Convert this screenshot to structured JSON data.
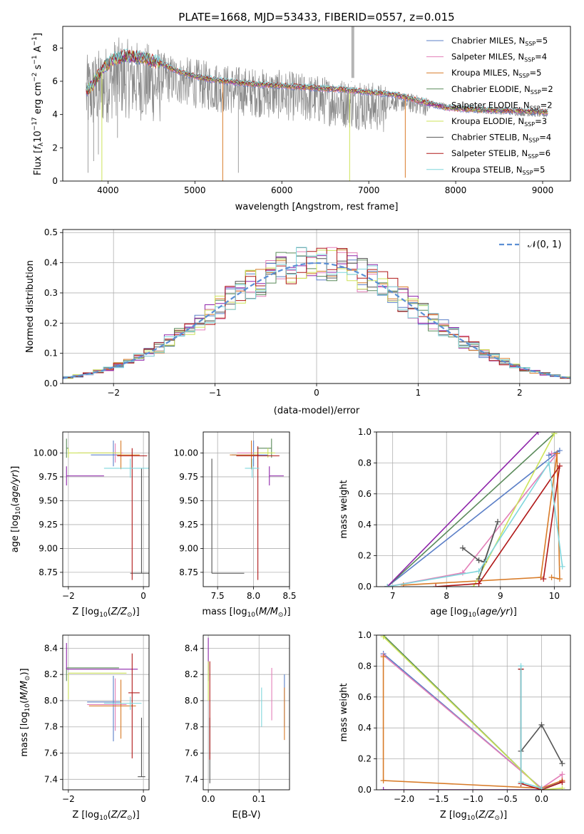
{
  "figure_title": "PLATE=1668, MJD=53433, FIBERID=0557, z=0.015",
  "colors": {
    "Chabrier MILES": "#5b7fc7",
    "Salpeter MILES": "#e37fb8",
    "Kroupa MILES": "#d87b28",
    "Chabrier ELODIE": "#5a8a5a",
    "Salpeter ELODIE": "#8e24aa",
    "Kroupa ELODIE": "#cde35a",
    "Chabrier STELIB": "#555555",
    "Salpeter STELIB": "#b01818",
    "Kroupa STELIB": "#7fd6dc",
    "data": "#888888"
  },
  "chart_data": [
    {
      "id": "spectrum",
      "type": "line",
      "title": "PLATE=1668, MJD=53433, FIBERID=0557, z=0.015",
      "xlabel": "wavelength [Angstrom, rest frame]",
      "ylabel": "Flux [f_λ 10^-17 erg cm^-2 s^-1 A^-1]",
      "xlim": [
        3480,
        9320
      ],
      "ylim": [
        0,
        9.3
      ],
      "xticks": [
        4000,
        5000,
        6000,
        7000,
        8000,
        9000
      ],
      "yticks": [
        0,
        2,
        4,
        6,
        8
      ],
      "grid": false,
      "legend_position": "top-right",
      "legend": [
        {
          "name": "Chabrier MILES",
          "nssp": "5"
        },
        {
          "name": "Salpeter MILES",
          "nssp": "4"
        },
        {
          "name": "Kroupa MILES",
          "nssp": "5"
        },
        {
          "name": "Chabrier ELODIE",
          "nssp": "2"
        },
        {
          "name": "Salpeter ELODIE",
          "nssp": "2"
        },
        {
          "name": "Kroupa ELODIE",
          "nssp": "3"
        },
        {
          "name": "Chabrier STELIB",
          "nssp": "4"
        },
        {
          "name": "Salpeter STELIB",
          "nssp": "6"
        },
        {
          "name": "Kroupa STELIB",
          "nssp": "5"
        }
      ],
      "data_envelope": {
        "x": [
          3750,
          3900,
          4000,
          4100,
          4300,
          4500,
          4700,
          5000,
          5300,
          5600,
          6000,
          6300,
          6600,
          6900,
          7200,
          7500,
          7700,
          7900,
          8200,
          8500,
          8800,
          9060
        ],
        "y": [
          6.5,
          6.9,
          7.2,
          7.6,
          7.4,
          7.2,
          7.0,
          6.7,
          6.4,
          6.2,
          6.0,
          5.8,
          5.6,
          5.4,
          5.2,
          5.0,
          4.8,
          4.6,
          4.4,
          4.3,
          4.2,
          4.1
        ]
      },
      "model_continuum": {
        "x": [
          3750,
          3850,
          3950,
          4050,
          4200,
          4400,
          4600,
          4800,
          5000,
          5200,
          5500,
          5800,
          6100,
          6400,
          6700,
          7000,
          7300,
          7600,
          7900,
          8200,
          8500,
          8800,
          9060
        ],
        "y": [
          5.4,
          6.0,
          6.8,
          7.3,
          7.5,
          7.4,
          7.1,
          6.6,
          6.3,
          6.1,
          5.9,
          5.8,
          5.7,
          5.6,
          5.5,
          5.35,
          5.2,
          4.8,
          4.4,
          4.3,
          4.25,
          4.2,
          4.15
        ]
      },
      "spikes": [
        {
          "x": 3930,
          "y_to": 0.0,
          "series": "Kroupa ELODIE"
        },
        {
          "x": 5320,
          "y_to": 0.0,
          "series": "Kroupa MILES"
        },
        {
          "x": 6780,
          "y_to": 0.0,
          "series": "Kroupa ELODIE"
        },
        {
          "x": 7420,
          "y_to": 0.2,
          "series": "Kroupa MILES"
        }
      ]
    },
    {
      "id": "residuals",
      "type": "histogram",
      "xlabel": "(data-model)/error",
      "ylabel": "Normed distribution",
      "xlim": [
        -2.5,
        2.5
      ],
      "ylim": [
        0,
        0.51
      ],
      "xticks": [
        -2,
        -1,
        0,
        1,
        2
      ],
      "yticks": [
        0.0,
        0.1,
        0.2,
        0.3,
        0.4,
        0.5
      ],
      "grid": true,
      "legend_position": "top-right",
      "legend": [
        {
          "name": "𝒩(0, 1)"
        }
      ],
      "bin_width": 0.1,
      "reference_curve": "N(0,1)"
    },
    {
      "id": "age_vs_Z",
      "type": "errorbar",
      "xlabel": "Z [log10(Z/Z⊙)]",
      "ylabel": "age  [log10(age/yr)]",
      "xlim": [
        -2.15,
        0.15
      ],
      "ylim": [
        8.6,
        10.22
      ],
      "xticks": [
        -2,
        0
      ],
      "yticks": [
        8.75,
        9.0,
        9.25,
        9.5,
        9.75,
        10.0
      ],
      "grid": true,
      "points": [
        {
          "series": "Chabrier MILES",
          "x": -0.8,
          "xerr": [
            0.6,
            0.2
          ],
          "y": 9.98,
          "yerr": [
            0.12,
            0.15
          ]
        },
        {
          "series": "Salpeter MILES",
          "x": -0.75,
          "xerr": [
            1.0,
            0.2
          ],
          "y": 10.0,
          "yerr": [
            0.1,
            0.1
          ]
        },
        {
          "series": "Kroupa MILES",
          "x": -0.6,
          "xerr": [
            0.1,
            0.5
          ],
          "y": 9.98,
          "yerr": [
            0.15,
            0.15
          ]
        },
        {
          "series": "Chabrier ELODIE",
          "x": -2.05,
          "xerr": [
            0.0,
            0.05
          ],
          "y": 10.05,
          "yerr": [
            0.1,
            0.1
          ]
        },
        {
          "series": "Salpeter ELODIE",
          "x": -2.05,
          "xerr": [
            0.0,
            1.0
          ],
          "y": 9.76,
          "yerr": [
            0.1,
            0.1
          ]
        },
        {
          "series": "Kroupa ELODIE",
          "x": -2.0,
          "xerr": [
            0.0,
            1.4
          ],
          "y": 10.0,
          "yerr": [
            0.05,
            0.05
          ]
        },
        {
          "series": "Chabrier STELIB",
          "x": -0.05,
          "xerr": [
            0.3,
            0.3
          ],
          "y": 8.74,
          "yerr": [
            0.0,
            1.1
          ]
        },
        {
          "series": "Salpeter STELIB",
          "x": -0.3,
          "xerr": [
            0.4,
            0.4
          ],
          "y": 9.97,
          "yerr": [
            1.3,
            0.08
          ]
        },
        {
          "series": "Kroupa STELIB",
          "x": -0.35,
          "xerr": [
            0.7,
            0.7
          ],
          "y": 9.84,
          "yerr": [
            0.1,
            0.1
          ]
        }
      ]
    },
    {
      "id": "age_vs_mass",
      "type": "errorbar",
      "xlabel": "mass [log10(M/M⊙)]",
      "ylabel": "",
      "xlim": [
        7.3,
        8.5
      ],
      "ylim": [
        8.6,
        10.22
      ],
      "xticks": [
        7.5,
        8.0,
        8.5
      ],
      "yticks": [
        8.75,
        9.0,
        9.25,
        9.5,
        9.75,
        10.0
      ],
      "grid": true,
      "points": [
        {
          "series": "Chabrier MILES",
          "x": 8.0,
          "xerr": [
            0.3,
            0.2
          ],
          "y": 9.98,
          "yerr": [
            0.12,
            0.15
          ]
        },
        {
          "series": "Salpeter MILES",
          "x": 7.97,
          "xerr": [
            0.2,
            0.25
          ],
          "y": 10.0,
          "yerr": [
            0.1,
            0.1
          ]
        },
        {
          "series": "Kroupa MILES",
          "x": 7.97,
          "xerr": [
            0.3,
            0.1
          ],
          "y": 9.98,
          "yerr": [
            0.15,
            0.15
          ]
        },
        {
          "series": "Chabrier ELODIE",
          "x": 8.25,
          "xerr": [
            0.2,
            0.0
          ],
          "y": 10.05,
          "yerr": [
            0.1,
            0.1
          ]
        },
        {
          "series": "Salpeter ELODIE",
          "x": 8.22,
          "xerr": [
            0.0,
            0.2
          ],
          "y": 9.76,
          "yerr": [
            0.1,
            0.1
          ]
        },
        {
          "series": "Kroupa ELODIE",
          "x": 8.2,
          "xerr": [
            0.2,
            0.1
          ],
          "y": 10.0,
          "yerr": [
            0.05,
            0.05
          ]
        },
        {
          "series": "Chabrier STELIB",
          "x": 7.42,
          "xerr": [
            0.0,
            0.45
          ],
          "y": 8.74,
          "yerr": [
            0.0,
            1.2
          ]
        },
        {
          "series": "Salpeter STELIB",
          "x": 8.06,
          "xerr": [
            0.3,
            0.3
          ],
          "y": 9.97,
          "yerr": [
            1.3,
            0.1
          ]
        },
        {
          "series": "Kroupa STELIB",
          "x": 7.98,
          "xerr": [
            0.1,
            0.1
          ],
          "y": 9.84,
          "yerr": [
            0.1,
            0.1
          ]
        }
      ]
    },
    {
      "id": "mass_weight_vs_age",
      "type": "line",
      "xlabel": "age  [log10(age/yr)]",
      "ylabel": "mass weight",
      "xlim": [
        6.7,
        10.3
      ],
      "ylim": [
        0,
        1.0
      ],
      "xticks": [
        7,
        8,
        9,
        10
      ],
      "yticks": [
        0.0,
        0.2,
        0.4,
        0.6,
        0.8,
        1.0
      ],
      "grid": true,
      "series": [
        {
          "name": "Chabrier MILES",
          "x": [
            6.9,
            10.1,
            9.9
          ],
          "y": [
            0.0,
            0.88,
            0.85
          ]
        },
        {
          "name": "Salpeter MILES",
          "x": [
            6.9,
            8.3,
            10.05,
            9.95
          ],
          "y": [
            0.0,
            0.09,
            0.86,
            0.86
          ]
        },
        {
          "name": "Kroupa MILES",
          "x": [
            7.2,
            9.75,
            10.05,
            10.1,
            9.95
          ],
          "y": [
            0.01,
            0.06,
            0.86,
            0.05,
            0.06
          ]
        },
        {
          "name": "Chabrier ELODIE",
          "x": [
            6.9,
            10.0
          ],
          "y": [
            0.0,
            0.99
          ]
        },
        {
          "name": "Salpeter ELODIE",
          "x": [
            6.9,
            9.7
          ],
          "y": [
            0.0,
            1.0
          ]
        },
        {
          "name": "Kroupa ELODIE",
          "x": [
            8.5,
            10.0
          ],
          "y": [
            0.0,
            0.99
          ]
        },
        {
          "name": "Chabrier STELIB",
          "x": [
            8.3,
            8.6,
            8.7,
            8.95,
            8.6
          ],
          "y": [
            0.25,
            0.17,
            0.16,
            0.42,
            0.05
          ]
        },
        {
          "name": "Salpeter STELIB",
          "x": [
            7.8,
            8.6,
            10.1,
            9.8
          ],
          "y": [
            0.0,
            0.02,
            0.78,
            0.05
          ]
        },
        {
          "name": "Kroupa STELIB",
          "x": [
            6.9,
            8.6,
            9.9,
            10.15
          ],
          "y": [
            0.0,
            0.1,
            0.8,
            0.13
          ]
        }
      ]
    },
    {
      "id": "mass_vs_Z",
      "type": "errorbar",
      "xlabel": "Z [log10(Z/Z⊙)]",
      "ylabel": "mass [log10(M/M⊙)]",
      "xlim": [
        -2.15,
        0.15
      ],
      "ylim": [
        7.32,
        8.5
      ],
      "xticks": [
        -2,
        0
      ],
      "yticks": [
        7.4,
        7.6,
        7.8,
        8.0,
        8.2,
        8.4
      ],
      "grid": true,
      "points": [
        {
          "series": "Chabrier MILES",
          "x": -0.8,
          "xerr": [
            0.7,
            0.2
          ],
          "y": 7.99,
          "yerr": [
            0.3,
            0.2
          ]
        },
        {
          "series": "Salpeter MILES",
          "x": -0.75,
          "xerr": [
            0.75,
            0.3
          ],
          "y": 7.97,
          "yerr": [
            0.2,
            0.2
          ]
        },
        {
          "series": "Kroupa MILES",
          "x": -0.6,
          "xerr": [
            0.85,
            0.4
          ],
          "y": 7.96,
          "yerr": [
            0.25,
            0.2
          ]
        },
        {
          "series": "Chabrier ELODIE",
          "x": -2.05,
          "xerr": [
            0.0,
            1.4
          ],
          "y": 8.25,
          "yerr": [
            0.1,
            0.0
          ]
        },
        {
          "series": "Salpeter ELODIE",
          "x": -2.05,
          "xerr": [
            0.0,
            1.9
          ],
          "y": 8.24,
          "yerr": [
            0.0,
            0.2
          ]
        },
        {
          "series": "Kroupa ELODIE",
          "x": -2.0,
          "xerr": [
            0.0,
            1.55
          ],
          "y": 8.21,
          "yerr": [
            0.2,
            0.0
          ]
        },
        {
          "series": "Chabrier STELIB",
          "x": -0.05,
          "xerr": [
            0.1,
            0.1
          ],
          "y": 7.42,
          "yerr": [
            0.0,
            0.45
          ]
        },
        {
          "series": "Salpeter STELIB",
          "x": -0.3,
          "xerr": [
            0.1,
            0.2
          ],
          "y": 8.06,
          "yerr": [
            0.5,
            0.3
          ]
        },
        {
          "series": "Kroupa STELIB",
          "x": -0.35,
          "xerr": [
            0.7,
            0.3
          ],
          "y": 7.98,
          "yerr": [
            0.05,
            0.05
          ]
        }
      ]
    },
    {
      "id": "mass_vs_ebv",
      "type": "errorbar",
      "xlabel": "E(B-V)",
      "ylabel": "",
      "xlim": [
        -0.01,
        0.16
      ],
      "ylim": [
        7.32,
        8.5
      ],
      "xticks": [
        0.0,
        0.1
      ],
      "yticks": [
        7.4,
        7.6,
        7.8,
        8.0,
        8.2,
        8.4
      ],
      "grid": true,
      "points": [
        {
          "series": "Chabrier MILES",
          "x": 0.15,
          "y": 8.0,
          "yerr": [
            0.2,
            0.2
          ]
        },
        {
          "series": "Salpeter MILES",
          "x": 0.125,
          "y": 8.05,
          "yerr": [
            0.2,
            0.2
          ]
        },
        {
          "series": "Kroupa MILES",
          "x": 0.15,
          "y": 7.9,
          "yerr": [
            0.2,
            0.2
          ]
        },
        {
          "series": "Chabrier ELODIE",
          "x": 0.0,
          "y": 8.25,
          "yerr": [
            0.1,
            0.05
          ]
        },
        {
          "series": "Salpeter ELODIE",
          "x": 0.0,
          "y": 8.38,
          "yerr": [
            0.15,
            0.1
          ]
        },
        {
          "series": "Kroupa ELODIE",
          "x": 0.0,
          "y": 8.2,
          "yerr": [
            0.2,
            0.1
          ]
        },
        {
          "series": "Chabrier STELIB",
          "x": 0.003,
          "y": 7.62,
          "yerr": [
            0.25,
            0.25
          ]
        },
        {
          "series": "Salpeter STELIB",
          "x": 0.003,
          "y": 7.9,
          "yerr": [
            0.35,
            0.4
          ]
        },
        {
          "series": "Kroupa STELIB",
          "x": 0.105,
          "y": 7.95,
          "yerr": [
            0.15,
            0.15
          ]
        }
      ]
    },
    {
      "id": "mass_weight_vs_Z",
      "type": "line",
      "xlabel": "Z [log10(Z/Z⊙)]",
      "ylabel": "mass weight",
      "xlim": [
        -2.4,
        0.42
      ],
      "ylim": [
        0,
        1.0
      ],
      "xticks": [
        -2.0,
        -1.5,
        -1.0,
        -0.5,
        0.0
      ],
      "yticks": [
        0.0,
        0.2,
        0.4,
        0.6,
        0.8,
        1.0
      ],
      "grid": true,
      "series": [
        {
          "name": "Chabrier MILES",
          "x": [
            -2.3,
            0.0,
            0.3
          ],
          "y": [
            0.88,
            0.01,
            0.05
          ]
        },
        {
          "name": "Salpeter MILES",
          "x": [
            -2.3,
            0.0,
            0.3,
            0.3
          ],
          "y": [
            0.87,
            0.01,
            0.1,
            0.05
          ]
        },
        {
          "name": "Kroupa MILES",
          "x": [
            -2.3,
            -2.3,
            0.0,
            0.3
          ],
          "y": [
            0.86,
            0.06,
            0.01,
            0.06
          ]
        },
        {
          "name": "Chabrier ELODIE",
          "x": [
            -2.3,
            0.0
          ],
          "y": [
            1.0,
            0.0
          ]
        },
        {
          "name": "Salpeter ELODIE",
          "x": [
            -2.3,
            0.0
          ],
          "y": [
            0.0,
            0.0
          ]
        },
        {
          "name": "Kroupa ELODIE",
          "x": [
            -2.3,
            0.0,
            0.3
          ],
          "y": [
            0.99,
            0.0,
            0.01
          ]
        },
        {
          "name": "Chabrier STELIB",
          "x": [
            -0.3,
            -0.3,
            0.0,
            0.3
          ],
          "y": [
            0.78,
            0.25,
            0.42,
            0.17
          ]
        },
        {
          "name": "Salpeter STELIB",
          "x": [
            -0.3,
            -0.3,
            0.0,
            0.3
          ],
          "y": [
            0.78,
            0.04,
            0.0,
            0.05
          ]
        },
        {
          "name": "Kroupa STELIB",
          "x": [
            -0.3,
            -0.3,
            0.0
          ],
          "y": [
            0.8,
            0.05,
            0.01
          ]
        }
      ]
    }
  ]
}
